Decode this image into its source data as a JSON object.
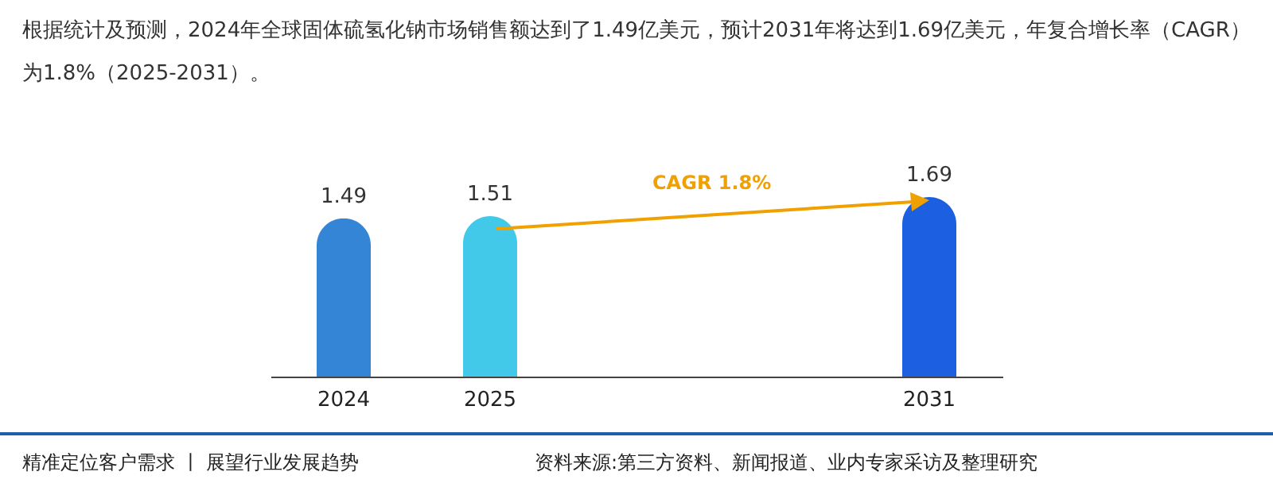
{
  "chart_data": {
    "type": "bar",
    "title": "根据统计及预测，2024年全球固体硫氢化钠市场销售额达到了1.49亿美元，预计2031年将达到1.69亿美元，年复合增长率（CAGR）为1.8%（2025-2031）。",
    "categories": [
      "2024",
      "2025",
      null,
      null,
      "2031"
    ],
    "values": [
      1.49,
      1.51,
      null,
      null,
      1.69
    ],
    "colors": [
      "#3485d6",
      "#42c9ea",
      "#3485d6",
      "#3485d6",
      "#1c5fe0"
    ],
    "data_labels": true,
    "annotations": [
      "CAGR 1.8%",
      "精准定位客户需求 丨 展望行业发展趋势",
      "资料来源:第三方资料、新闻报道、业内专家采访及整理研究"
    ]
  }
}
